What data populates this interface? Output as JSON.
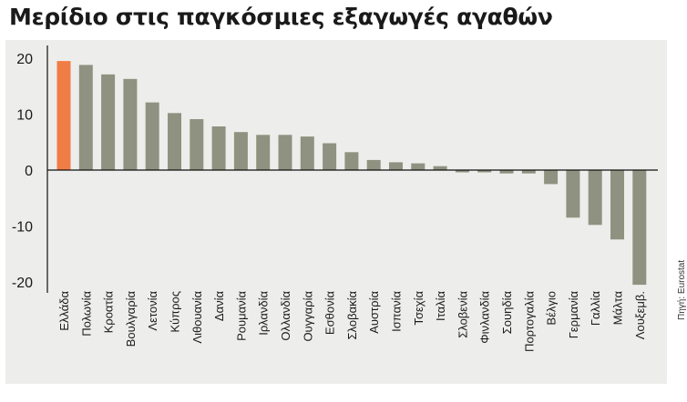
{
  "title": "Μερίδιο στις παγκόσμιες εξαγωγές αγαθών",
  "source": "Πηγή: Eurostat",
  "colors": {
    "highlight": "#f07d45",
    "bar": "#8f9280",
    "panel": "#ededeb",
    "axis": "#111111",
    "text": "#1a1a1a"
  },
  "chart_data": {
    "type": "bar",
    "title": "Μερίδιο στις παγκόσμιες εξαγωγές αγαθών",
    "xlabel": "",
    "ylabel": "",
    "ylim": [
      -21,
      21
    ],
    "yticks": [
      20,
      10,
      0,
      -10,
      -20
    ],
    "grid": false,
    "legend": "none",
    "highlight_category": "Ελλάδα",
    "categories": [
      "Ελλάδα",
      "Πολωνία",
      "Κροατία",
      "Βουλγαρία",
      "Λετονία",
      "Κύπρος",
      "Λιθουανία",
      "Δανία",
      "Ρουμανία",
      "Ιρλανδία",
      "Ολλανδία",
      "Ουγγαρία",
      "Εσθονία",
      "Σλοβακία",
      "Αυστρία",
      "Ισπανία",
      "Τσεχία",
      "Ιταλία",
      "Σλοβενία",
      "Φινλανδία",
      "Σουηδία",
      "Πορτογαλία",
      "Βέλγιο",
      "Γερμανία",
      "Γαλλία",
      "Μάλτα",
      "Λουξεμβ."
    ],
    "values": [
      19.5,
      18.8,
      17.1,
      16.3,
      12.1,
      10.2,
      9.1,
      7.8,
      6.8,
      6.3,
      6.3,
      6.0,
      4.8,
      3.2,
      1.8,
      1.4,
      1.2,
      0.7,
      -0.4,
      -0.4,
      -0.6,
      -0.6,
      -2.5,
      -8.5,
      -9.8,
      -12.4,
      -20.5
    ]
  }
}
